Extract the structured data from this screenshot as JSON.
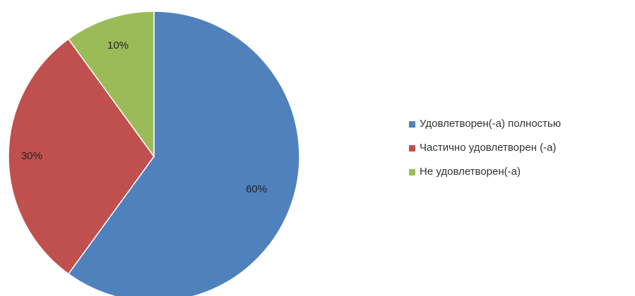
{
  "chart_data": {
    "type": "pie",
    "categories": [
      "Удовлетворен(-а) полностью",
      "Частично удовлетворен (-а)",
      "Не удовлетворен(-а)"
    ],
    "values": [
      60,
      30,
      10
    ],
    "value_labels": [
      "60%",
      "30%",
      "10%"
    ],
    "colors": [
      "#4F81BD",
      "#C0504D",
      "#9BBB59"
    ],
    "start": "12 o'clock, clockwise",
    "legend": {
      "position": "right",
      "items": [
        {
          "label": "Удовлетворен(-а) полностью",
          "color": "#4F81BD"
        },
        {
          "label": "Частично удовлетворен (-а)",
          "color": "#C0504D"
        },
        {
          "label": "Не удовлетворен(-а)",
          "color": "#9BBB59"
        }
      ]
    }
  }
}
